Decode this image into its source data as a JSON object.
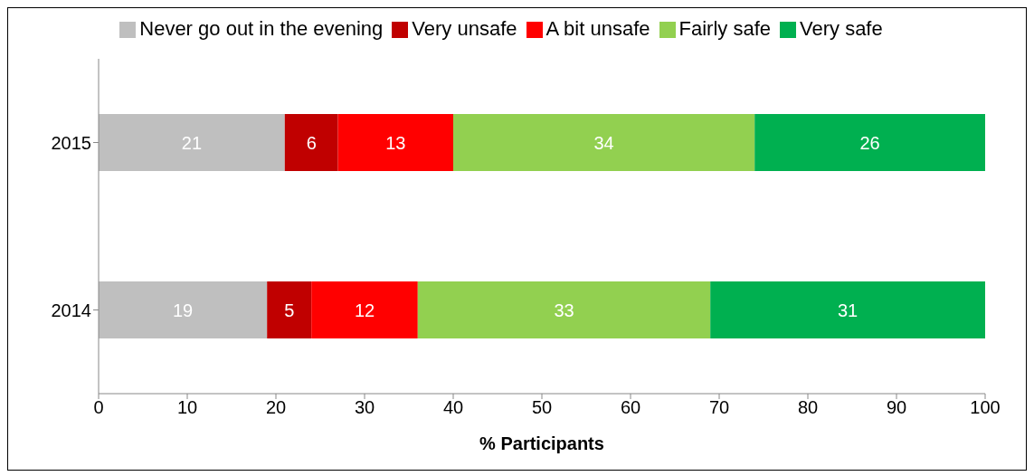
{
  "chart_data": {
    "type": "bar",
    "orientation": "horizontal",
    "stacked": true,
    "categories": [
      "2015",
      "2014"
    ],
    "series": [
      {
        "name": "Never go out in the evening",
        "color": "#bfbfbf",
        "values": [
          21,
          19
        ]
      },
      {
        "name": "Very unsafe",
        "color": "#c00000",
        "values": [
          6,
          5
        ]
      },
      {
        "name": "A bit unsafe",
        "color": "#ff0000",
        "values": [
          13,
          12
        ]
      },
      {
        "name": "Fairly safe",
        "color": "#92d050",
        "values": [
          34,
          33
        ]
      },
      {
        "name": "Very safe",
        "color": "#00b050",
        "values": [
          26,
          31
        ]
      }
    ],
    "xlabel": "% Participants",
    "xlim": [
      0,
      100
    ],
    "xticks": [
      0,
      10,
      20,
      30,
      40,
      50,
      60,
      70,
      80,
      90,
      100
    ],
    "grid": false,
    "legend": "top",
    "data_labels": true
  }
}
